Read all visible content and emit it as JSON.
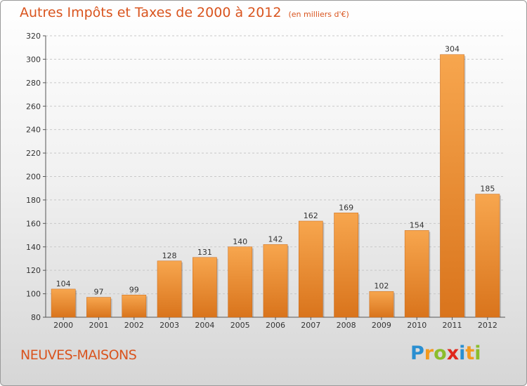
{
  "header": {
    "title": "Autres Impôts et Taxes de 2000 à 2012",
    "unit": "(en milliers d'€)"
  },
  "footer": {
    "location": "NEUVES-MAISONS",
    "logo_letters": [
      {
        "ch": "P",
        "color": "#2a8fd1"
      },
      {
        "ch": "r",
        "color": "#f39a1e"
      },
      {
        "ch": "o",
        "color": "#8bbd2c"
      },
      {
        "ch": "x",
        "color": "#e0271b"
      },
      {
        "ch": "i",
        "color": "#2a8fd1"
      },
      {
        "ch": "t",
        "color": "#f39a1e"
      },
      {
        "ch": "i",
        "color": "#8bbd2c"
      }
    ]
  },
  "colors": {
    "accent": "#d9541e",
    "bar_light": "#f7a64e",
    "bar_dark": "#d9741c",
    "grid": "#c8c8c8"
  },
  "chart_data": {
    "type": "bar",
    "categories": [
      "2000",
      "2001",
      "2002",
      "2003",
      "2004",
      "2005",
      "2006",
      "2007",
      "2008",
      "2009",
      "2010",
      "2011",
      "2012"
    ],
    "values": [
      104,
      97,
      99,
      128,
      131,
      140,
      142,
      162,
      169,
      102,
      154,
      304,
      185
    ],
    "ylim": [
      80,
      320
    ],
    "yticks": [
      80,
      100,
      120,
      140,
      160,
      180,
      200,
      220,
      240,
      260,
      280,
      300,
      320
    ],
    "grid": true,
    "legend": "none"
  }
}
